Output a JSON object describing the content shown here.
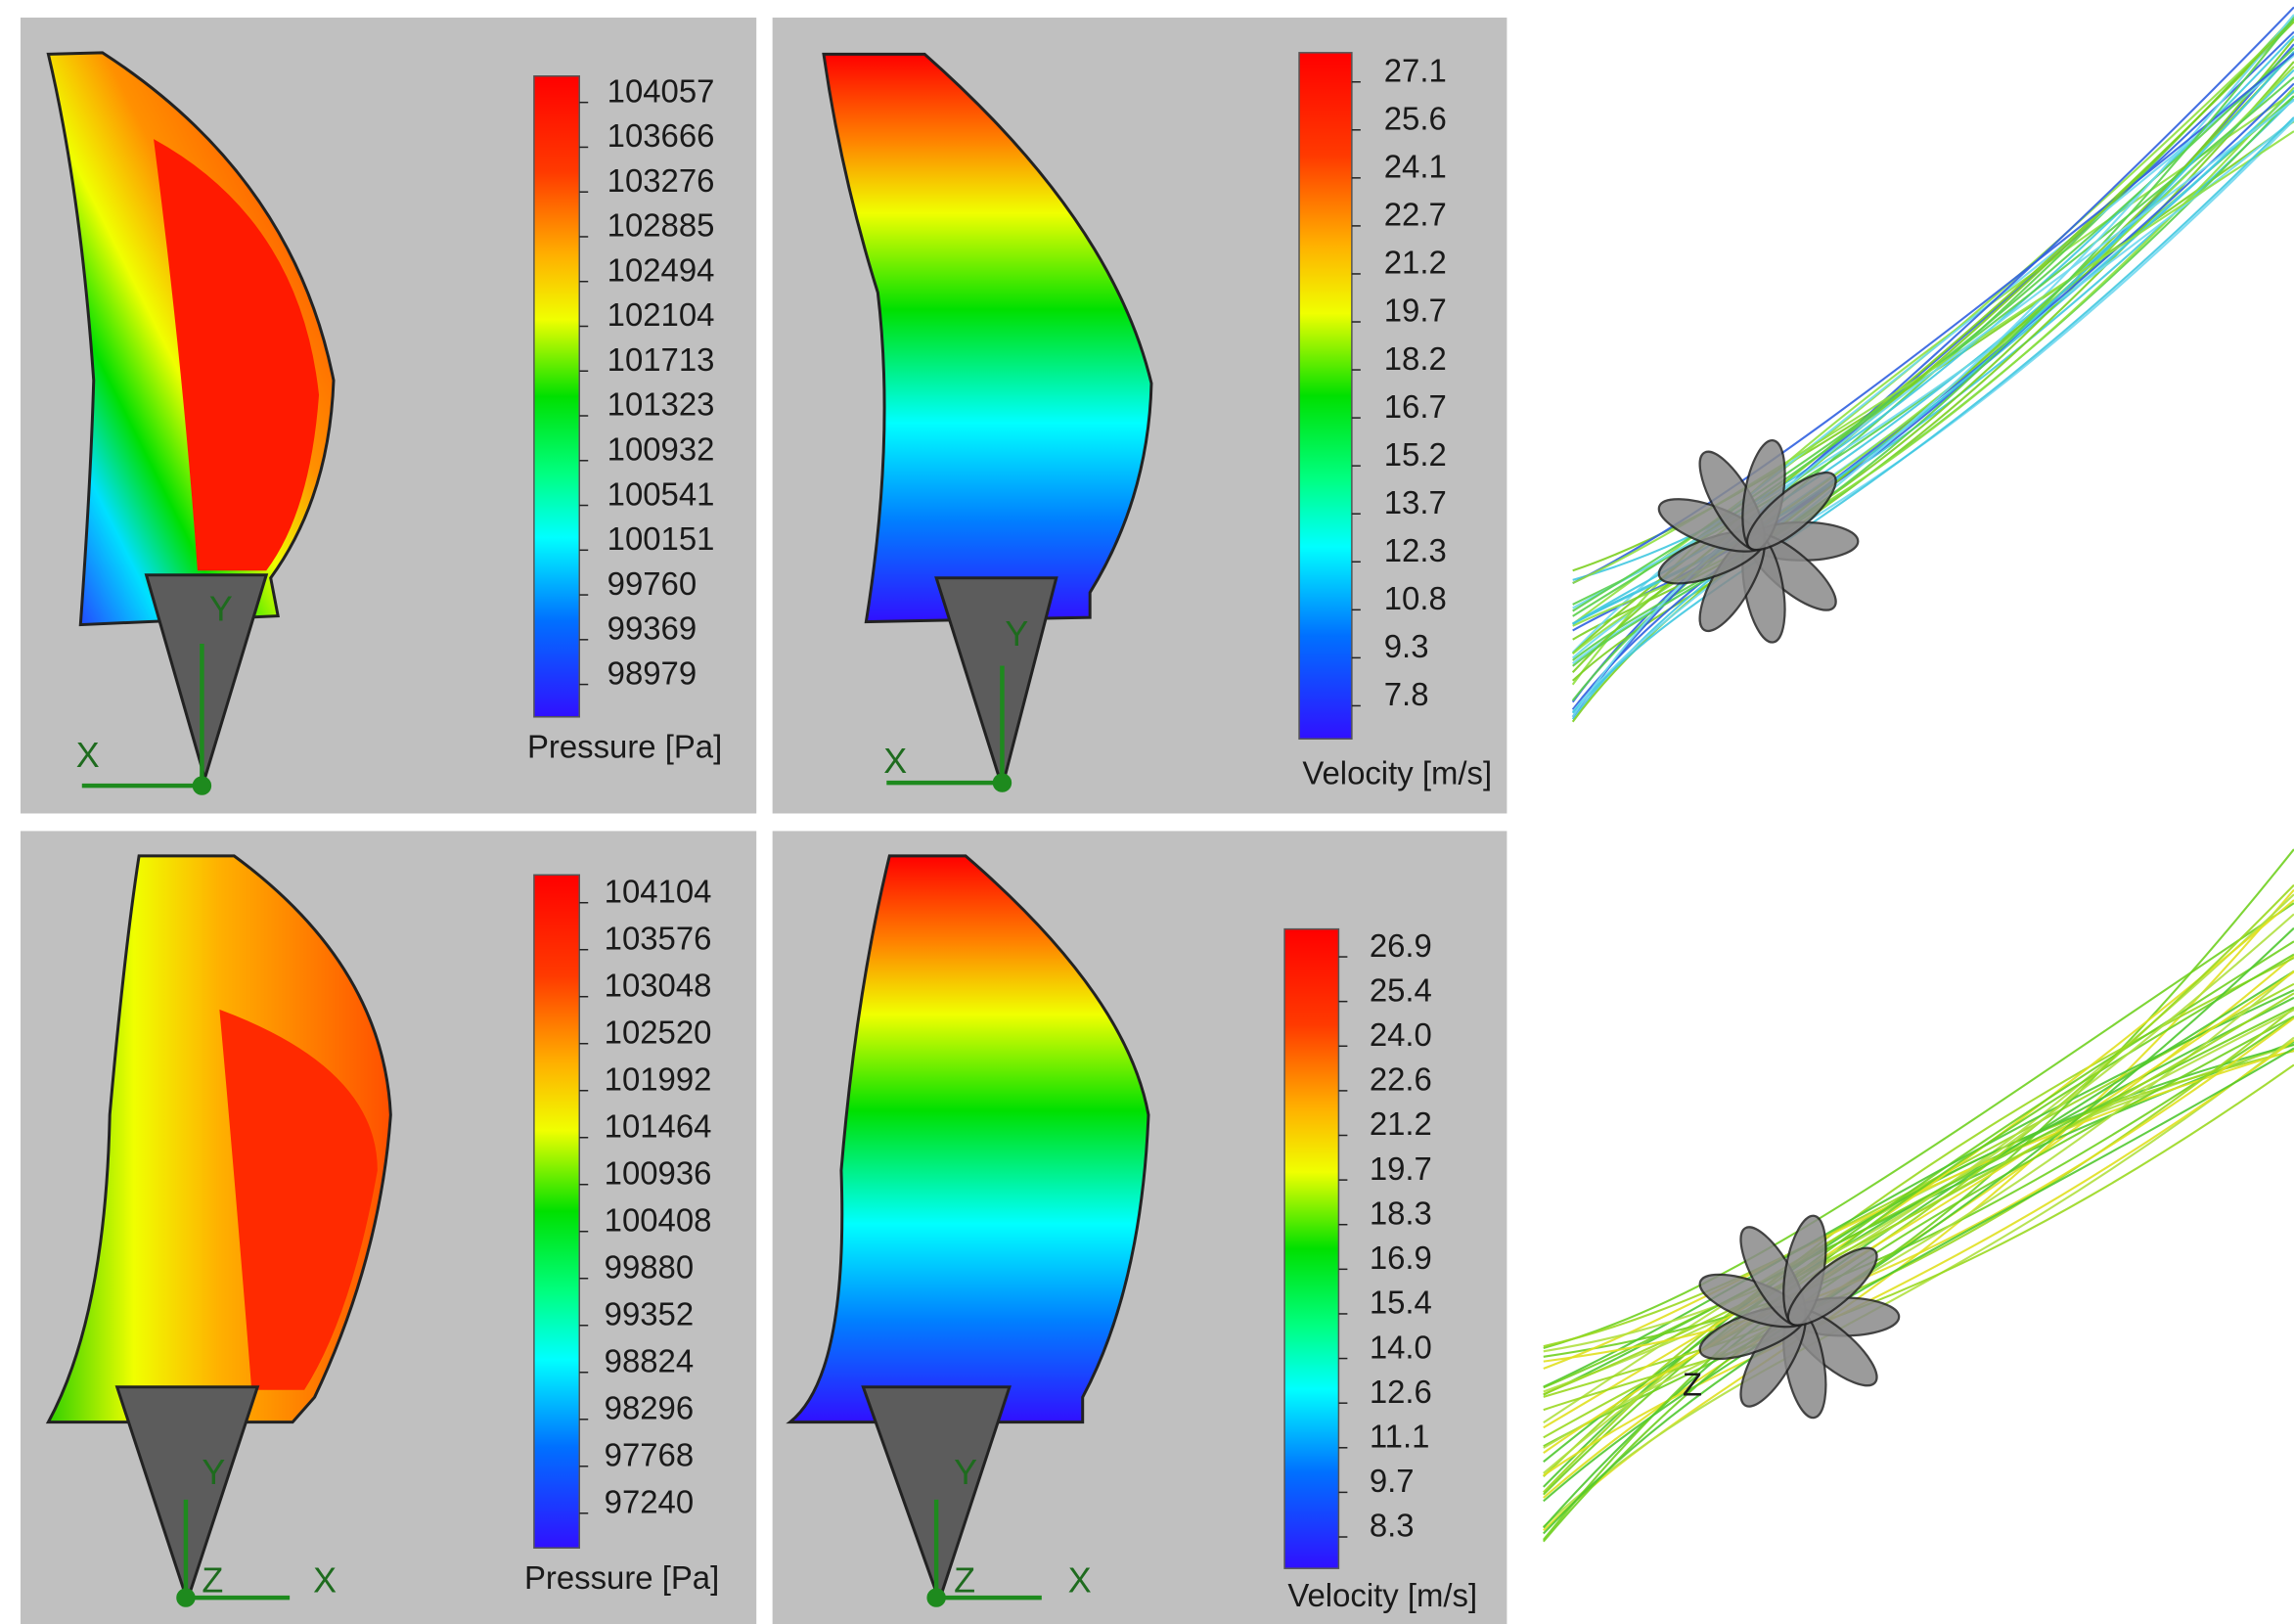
{
  "panels": [
    {
      "legend": {
        "labels": [
          "104057",
          "103666",
          "103276",
          "102885",
          "102494",
          "102104",
          "101713",
          "101323",
          "100932",
          "100541",
          "100151",
          "99760",
          "99369",
          "98979"
        ],
        "title": "Pressure [Pa]"
      },
      "axes": [
        "Y",
        "X"
      ]
    },
    {
      "legend": {
        "labels": [
          "27.1",
          "25.6",
          "24.1",
          "22.7",
          "21.2",
          "19.7",
          "18.2",
          "16.7",
          "15.2",
          "13.7",
          "12.3",
          "10.8",
          "9.3",
          "7.8"
        ],
        "title": "Velocity [m/s]"
      },
      "axes": [
        "Y",
        "X"
      ]
    },
    {
      "legend": {
        "labels": [
          "104104",
          "103576",
          "103048",
          "102520",
          "101992",
          "101464",
          "100936",
          "100408",
          "99880",
          "99352",
          "98824",
          "98296",
          "97768",
          "97240"
        ],
        "title": "Pressure [Pa]"
      },
      "axes": [
        "Y",
        "Z",
        "X"
      ]
    },
    {
      "legend": {
        "labels": [
          "26.9",
          "25.4",
          "24.0",
          "22.6",
          "21.2",
          "19.7",
          "18.3",
          "16.9",
          "15.4",
          "14.0",
          "12.6",
          "11.1",
          "9.7",
          "8.3"
        ],
        "title": "Velocity [m/s]"
      },
      "axes": [
        "Y",
        "Z",
        "X"
      ]
    }
  ],
  "streamline_view": {
    "axis": "Z"
  }
}
